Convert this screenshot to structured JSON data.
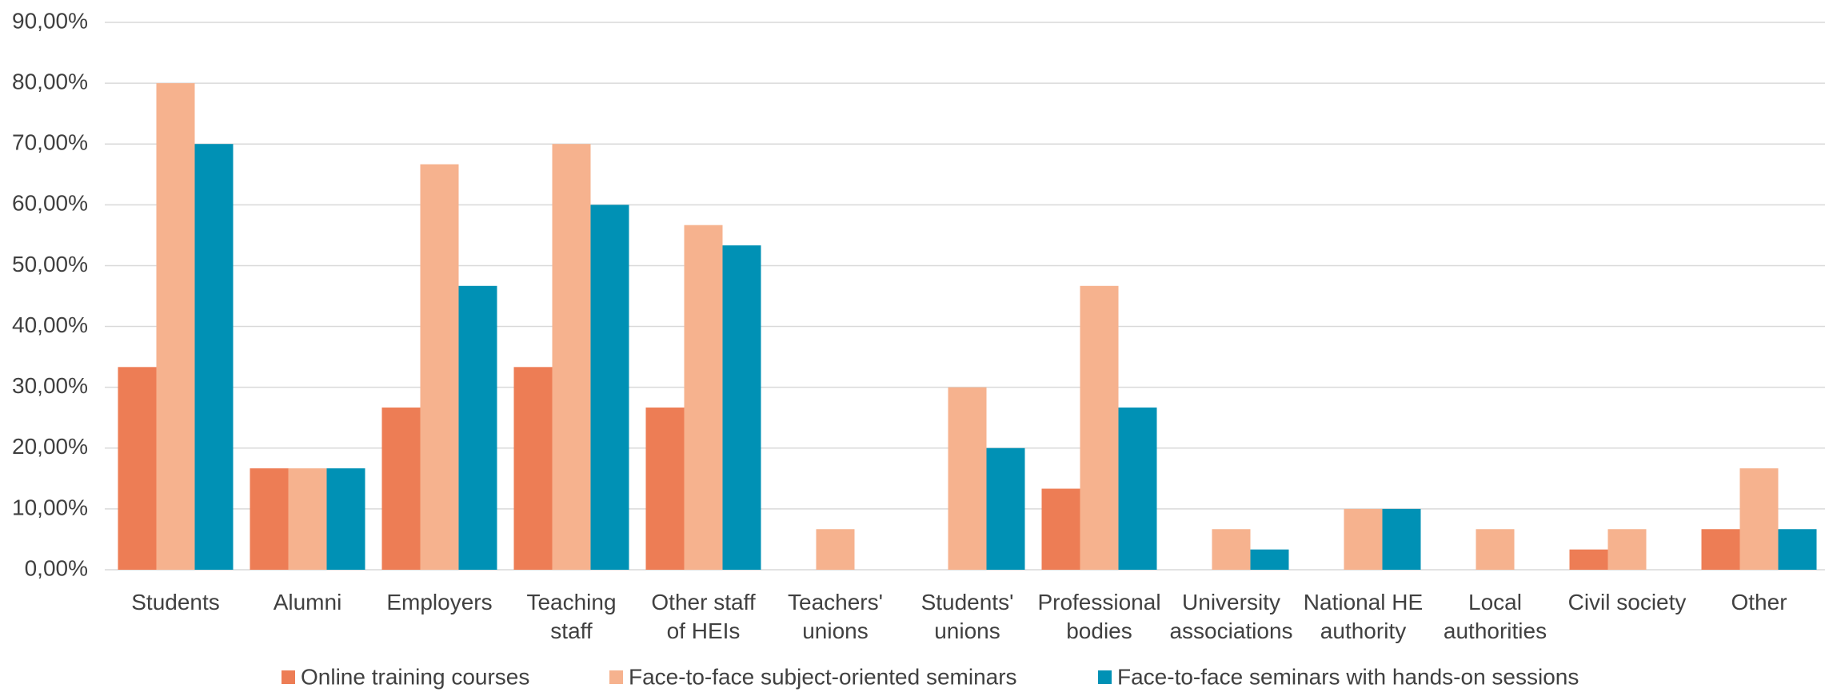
{
  "chart_data": {
    "type": "bar",
    "categories": [
      "Students",
      "Alumni",
      "Employers",
      "Teaching\nstaff",
      "Other staff\nof HEIs",
      "Teachers'\nunions",
      "Students'\nunions",
      "Professional\nbodies",
      "University\nassociations",
      "National HE\nauthority",
      "Local\nauthorities",
      "Civil society",
      "Other"
    ],
    "series": [
      {
        "name": "Online training courses",
        "color": "#ED7D55",
        "values": [
          33.33,
          16.67,
          26.67,
          33.33,
          26.67,
          0,
          0,
          13.33,
          0,
          0,
          0,
          3.33,
          6.67
        ]
      },
      {
        "name": "Face-to-face subject-oriented seminars",
        "color": "#F6B28E",
        "values": [
          80,
          16.67,
          66.67,
          70,
          56.67,
          6.67,
          30,
          46.67,
          6.67,
          10,
          6.67,
          6.67,
          16.67
        ]
      },
      {
        "name": "Face-to-face seminars with hands-on sessions",
        "color": "#0091B5",
        "values": [
          70,
          16.67,
          46.67,
          60,
          53.33,
          0,
          20,
          26.67,
          3.33,
          10,
          0,
          0,
          6.67
        ]
      }
    ],
    "ylim": [
      0,
      90
    ],
    "yticks": [
      {
        "value": 0,
        "label": "0,00%"
      },
      {
        "value": 10,
        "label": "10,00%"
      },
      {
        "value": 20,
        "label": "20,00%"
      },
      {
        "value": 30,
        "label": "30,00%"
      },
      {
        "value": 40,
        "label": "40,00%"
      },
      {
        "value": 50,
        "label": "50,00%"
      },
      {
        "value": 60,
        "label": "60,00%"
      },
      {
        "value": 70,
        "label": "70,00%"
      },
      {
        "value": 80,
        "label": "80,00%"
      },
      {
        "value": 90,
        "label": "90,00%"
      }
    ],
    "grid": true,
    "legend": "bottom"
  }
}
